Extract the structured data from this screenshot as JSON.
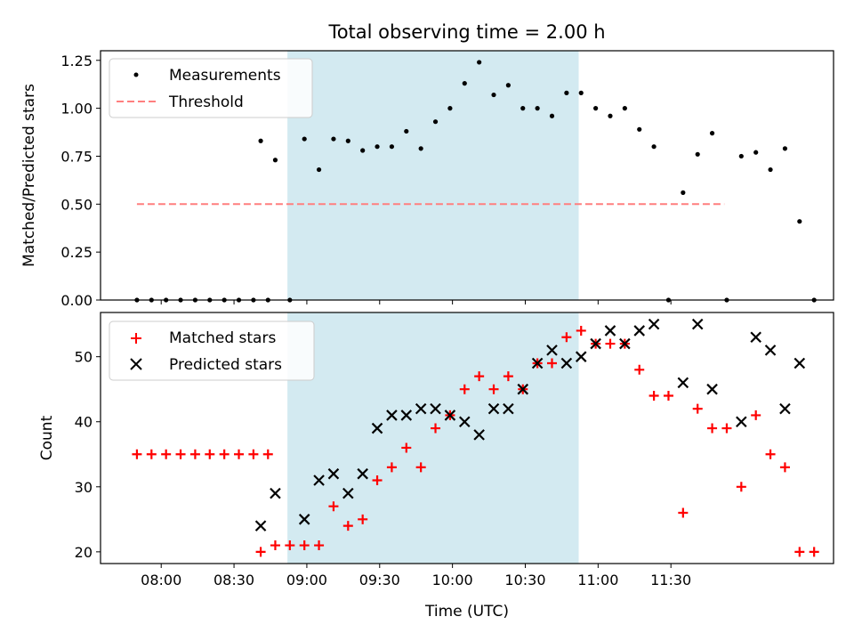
{
  "chart_data": [
    {
      "type": "scatter",
      "title": "Total observing time = 2.00 h",
      "ylabel": "Matched/Predicted stars",
      "xlabel": "",
      "ylim": [
        0,
        1.3
      ],
      "yticks": [
        "0.00",
        "0.25",
        "0.50",
        "0.75",
        "1.00",
        "1.25"
      ],
      "grid": false,
      "legend_position": "upper-left",
      "shaded_span": {
        "start": "08:52",
        "end": "10:52",
        "color": "#d3eaf1"
      },
      "threshold": {
        "name": "Threshold",
        "value": 0.5,
        "start": "07:50",
        "end": "11:52",
        "color": "#ff7f7f",
        "style": "dashed"
      },
      "series": [
        {
          "name": "Measurements",
          "color": "#000000",
          "marker": "dot",
          "points": [
            [
              "07:50",
              0
            ],
            [
              "07:56",
              0
            ],
            [
              "08:02",
              0
            ],
            [
              "08:08",
              0
            ],
            [
              "08:14",
              0
            ],
            [
              "08:20",
              0
            ],
            [
              "08:26",
              0
            ],
            [
              "08:32",
              0
            ],
            [
              "08:38",
              0
            ],
            [
              "08:44",
              0
            ],
            [
              "08:41",
              0.83
            ],
            [
              "08:47",
              0.73
            ],
            [
              "08:53",
              0
            ],
            [
              "08:59",
              0.84
            ],
            [
              "09:05",
              0.68
            ],
            [
              "09:11",
              0.84
            ],
            [
              "09:17",
              0.83
            ],
            [
              "09:23",
              0.78
            ],
            [
              "09:29",
              0.8
            ],
            [
              "09:35",
              0.8
            ],
            [
              "09:41",
              0.88
            ],
            [
              "09:47",
              0.79
            ],
            [
              "09:53",
              0.93
            ],
            [
              "09:59",
              1.0
            ],
            [
              "10:05",
              1.13
            ],
            [
              "10:11",
              1.24
            ],
            [
              "10:17",
              1.07
            ],
            [
              "10:23",
              1.12
            ],
            [
              "10:29",
              1.0
            ],
            [
              "10:35",
              1.0
            ],
            [
              "10:41",
              0.96
            ],
            [
              "10:47",
              1.08
            ],
            [
              "10:53",
              1.08
            ],
            [
              "10:59",
              1.0
            ],
            [
              "11:05",
              0.96
            ],
            [
              "11:11",
              1.0
            ],
            [
              "11:17",
              0.89
            ],
            [
              "11:23",
              0.8
            ],
            [
              "11:29",
              0
            ],
            [
              "11:35",
              0.56
            ],
            [
              "11:41",
              0.76
            ],
            [
              "11:47",
              0.87
            ],
            [
              "11:53",
              0
            ],
            [
              "11:59",
              0.75
            ],
            [
              "12:05",
              0.77
            ],
            [
              "12:11",
              0.68
            ],
            [
              "12:17",
              0.79
            ],
            [
              "12:23",
              0.41
            ],
            [
              "12:29",
              0
            ]
          ]
        }
      ]
    },
    {
      "type": "scatter",
      "title": "",
      "ylabel": "Count",
      "xlabel": "Time (UTC)",
      "ylim": [
        18.2,
        56.8
      ],
      "yticks": [
        "20",
        "30",
        "40",
        "50"
      ],
      "xticks": [
        "08:00",
        "08:30",
        "09:00",
        "09:30",
        "10:00",
        "10:30",
        "11:00",
        "11:30"
      ],
      "grid": false,
      "legend_position": "upper-left",
      "shaded_span": {
        "start": "08:52",
        "end": "10:52",
        "color": "#d3eaf1"
      },
      "series": [
        {
          "name": "Matched stars",
          "color": "#ff0000",
          "marker": "plus",
          "points": [
            [
              "07:50",
              35
            ],
            [
              "07:56",
              35
            ],
            [
              "08:02",
              35
            ],
            [
              "08:08",
              35
            ],
            [
              "08:14",
              35
            ],
            [
              "08:20",
              35
            ],
            [
              "08:26",
              35
            ],
            [
              "08:32",
              35
            ],
            [
              "08:38",
              35
            ],
            [
              "08:44",
              35
            ],
            [
              "08:41",
              20
            ],
            [
              "08:47",
              21
            ],
            [
              "08:53",
              21
            ],
            [
              "08:59",
              21
            ],
            [
              "09:05",
              21
            ],
            [
              "09:11",
              27
            ],
            [
              "09:17",
              24
            ],
            [
              "09:23",
              25
            ],
            [
              "09:29",
              31
            ],
            [
              "09:35",
              33
            ],
            [
              "09:41",
              36
            ],
            [
              "09:47",
              33
            ],
            [
              "09:53",
              39
            ],
            [
              "09:59",
              41
            ],
            [
              "10:05",
              45
            ],
            [
              "10:11",
              47
            ],
            [
              "10:17",
              45
            ],
            [
              "10:23",
              47
            ],
            [
              "10:29",
              45
            ],
            [
              "10:35",
              49
            ],
            [
              "10:41",
              49
            ],
            [
              "10:47",
              53
            ],
            [
              "10:53",
              54
            ],
            [
              "10:59",
              52
            ],
            [
              "11:05",
              52
            ],
            [
              "11:11",
              52
            ],
            [
              "11:17",
              48
            ],
            [
              "11:23",
              44
            ],
            [
              "11:29",
              44
            ],
            [
              "11:35",
              26
            ],
            [
              "11:41",
              42
            ],
            [
              "11:47",
              39
            ],
            [
              "11:53",
              39
            ],
            [
              "11:59",
              30
            ],
            [
              "12:05",
              41
            ],
            [
              "12:11",
              35
            ],
            [
              "12:17",
              33
            ],
            [
              "12:23",
              20
            ],
            [
              "12:29",
              20
            ]
          ]
        },
        {
          "name": "Predicted stars",
          "color": "#000000",
          "marker": "x",
          "points": [
            [
              "08:41",
              24
            ],
            [
              "08:47",
              29
            ],
            [
              "08:59",
              25
            ],
            [
              "09:05",
              31
            ],
            [
              "09:11",
              32
            ],
            [
              "09:17",
              29
            ],
            [
              "09:23",
              32
            ],
            [
              "09:29",
              39
            ],
            [
              "09:35",
              41
            ],
            [
              "09:41",
              41
            ],
            [
              "09:47",
              42
            ],
            [
              "09:53",
              42
            ],
            [
              "09:59",
              41
            ],
            [
              "10:05",
              40
            ],
            [
              "10:11",
              38
            ],
            [
              "10:17",
              42
            ],
            [
              "10:23",
              42
            ],
            [
              "10:29",
              45
            ],
            [
              "10:35",
              49
            ],
            [
              "10:41",
              51
            ],
            [
              "10:47",
              49
            ],
            [
              "10:53",
              50
            ],
            [
              "10:59",
              52
            ],
            [
              "11:05",
              54
            ],
            [
              "11:11",
              52
            ],
            [
              "11:17",
              54
            ],
            [
              "11:23",
              55
            ],
            [
              "11:35",
              46
            ],
            [
              "11:41",
              55
            ],
            [
              "11:47",
              45
            ],
            [
              "11:59",
              40
            ],
            [
              "12:05",
              53
            ],
            [
              "12:11",
              51
            ],
            [
              "12:17",
              42
            ],
            [
              "12:23",
              49
            ]
          ]
        }
      ]
    }
  ]
}
